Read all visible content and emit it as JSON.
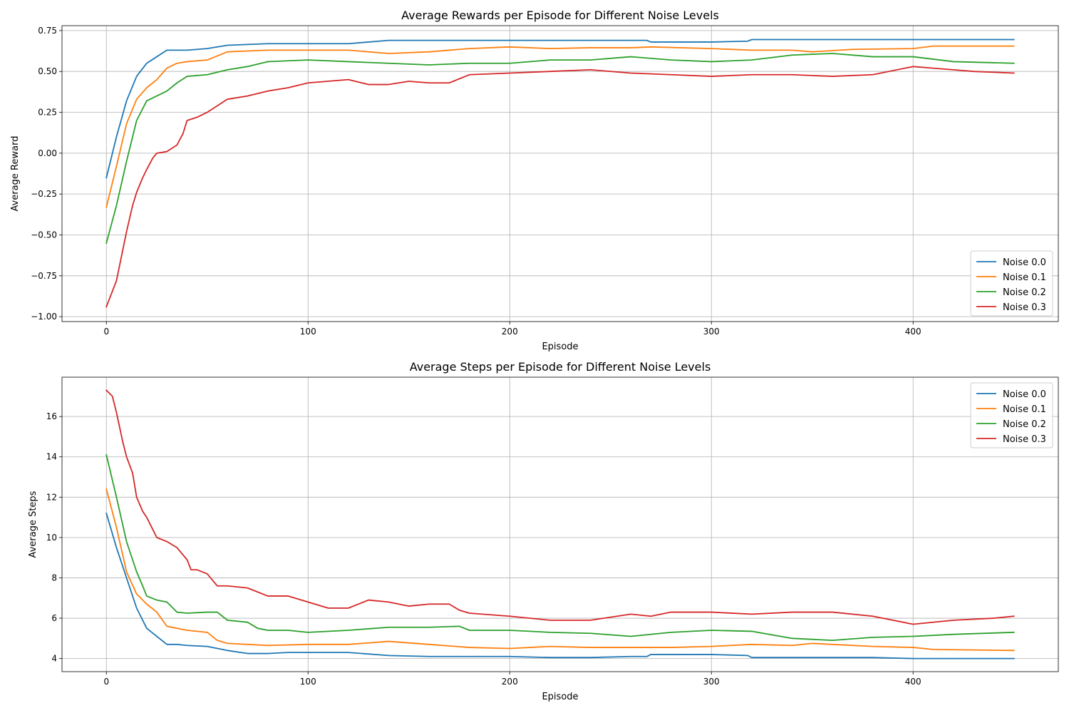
{
  "chart_data": [
    {
      "type": "line",
      "title": "Average Rewards per Episode for Different Noise Levels",
      "xlabel": "Episode",
      "ylabel": "Average Reward",
      "xlim": [
        -22,
        472
      ],
      "ylim": [
        -1.03,
        0.78
      ],
      "xticks": [
        0,
        100,
        200,
        300,
        400
      ],
      "yticks": [
        -1.0,
        -0.75,
        -0.5,
        -0.25,
        0.0,
        0.25,
        0.5,
        0.75
      ],
      "ytick_labels": [
        "−1.00",
        "−0.75",
        "−0.50",
        "−0.25",
        "0.00",
        "0.25",
        "0.50",
        "0.75"
      ],
      "grid": true,
      "legend_position": "lower-right",
      "series": [
        {
          "name": "Noise 0.0",
          "color": "#1f77b4",
          "x": [
            0,
            5,
            10,
            15,
            20,
            25,
            30,
            35,
            40,
            50,
            60,
            80,
            100,
            120,
            140,
            160,
            180,
            200,
            220,
            240,
            260,
            268,
            270,
            300,
            318,
            320,
            350,
            380,
            400,
            410,
            450
          ],
          "y": [
            -0.15,
            0.1,
            0.32,
            0.47,
            0.55,
            0.59,
            0.63,
            0.63,
            0.63,
            0.64,
            0.66,
            0.67,
            0.67,
            0.67,
            0.69,
            0.69,
            0.69,
            0.69,
            0.69,
            0.69,
            0.69,
            0.69,
            0.68,
            0.68,
            0.685,
            0.695,
            0.695,
            0.695,
            0.695,
            0.695,
            0.695
          ]
        },
        {
          "name": "Noise 0.1",
          "color": "#ff7f0e",
          "x": [
            0,
            5,
            10,
            15,
            20,
            25,
            30,
            35,
            40,
            50,
            60,
            80,
            100,
            120,
            140,
            160,
            180,
            200,
            220,
            240,
            260,
            270,
            300,
            320,
            340,
            350,
            370,
            400,
            410,
            450
          ],
          "y": [
            -0.33,
            -0.08,
            0.18,
            0.33,
            0.4,
            0.45,
            0.52,
            0.55,
            0.56,
            0.57,
            0.62,
            0.63,
            0.63,
            0.63,
            0.61,
            0.62,
            0.64,
            0.65,
            0.64,
            0.645,
            0.645,
            0.65,
            0.64,
            0.63,
            0.63,
            0.62,
            0.635,
            0.64,
            0.655,
            0.655
          ]
        },
        {
          "name": "Noise 0.2",
          "color": "#2ca02c",
          "x": [
            0,
            5,
            10,
            15,
            20,
            25,
            30,
            35,
            40,
            50,
            60,
            70,
            80,
            100,
            120,
            140,
            160,
            180,
            200,
            220,
            240,
            260,
            280,
            300,
            320,
            340,
            360,
            380,
            400,
            420,
            450
          ],
          "y": [
            -0.55,
            -0.32,
            -0.05,
            0.2,
            0.32,
            0.35,
            0.38,
            0.43,
            0.47,
            0.48,
            0.51,
            0.53,
            0.56,
            0.57,
            0.56,
            0.55,
            0.54,
            0.55,
            0.55,
            0.57,
            0.57,
            0.59,
            0.57,
            0.56,
            0.57,
            0.6,
            0.61,
            0.59,
            0.59,
            0.56,
            0.55
          ]
        },
        {
          "name": "Noise 0.3",
          "color": "#d62728",
          "x": [
            0,
            5,
            10,
            13,
            15,
            18,
            20,
            23,
            25,
            30,
            35,
            38,
            40,
            45,
            50,
            55,
            60,
            70,
            80,
            90,
            100,
            120,
            130,
            140,
            150,
            160,
            170,
            180,
            200,
            220,
            240,
            260,
            280,
            300,
            320,
            340,
            360,
            380,
            400,
            410,
            420,
            430,
            450
          ],
          "y": [
            -0.94,
            -0.78,
            -0.48,
            -0.32,
            -0.24,
            -0.15,
            -0.1,
            -0.03,
            0.0,
            0.01,
            0.05,
            0.12,
            0.2,
            0.22,
            0.25,
            0.29,
            0.33,
            0.35,
            0.38,
            0.4,
            0.43,
            0.45,
            0.42,
            0.42,
            0.44,
            0.43,
            0.43,
            0.48,
            0.49,
            0.5,
            0.51,
            0.49,
            0.48,
            0.47,
            0.48,
            0.48,
            0.47,
            0.48,
            0.53,
            0.52,
            0.51,
            0.5,
            0.49
          ]
        }
      ]
    },
    {
      "type": "line",
      "title": "Average Steps per Episode for Different Noise Levels",
      "xlabel": "Episode",
      "ylabel": "Average Steps",
      "xlim": [
        -22,
        472
      ],
      "ylim": [
        3.35,
        17.95
      ],
      "xticks": [
        0,
        100,
        200,
        300,
        400
      ],
      "yticks": [
        4,
        6,
        8,
        10,
        12,
        14,
        16
      ],
      "ytick_labels": [
        "4",
        "6",
        "8",
        "10",
        "12",
        "14",
        "16"
      ],
      "grid": true,
      "legend_position": "upper-right",
      "series": [
        {
          "name": "Noise 0.0",
          "color": "#1f77b4",
          "x": [
            0,
            5,
            10,
            15,
            20,
            25,
            30,
            35,
            40,
            50,
            60,
            70,
            80,
            90,
            100,
            120,
            140,
            160,
            180,
            200,
            220,
            240,
            260,
            268,
            270,
            300,
            318,
            320,
            350,
            380,
            400,
            450
          ],
          "y": [
            11.2,
            9.5,
            8.0,
            6.5,
            5.5,
            5.1,
            4.7,
            4.7,
            4.65,
            4.6,
            4.4,
            4.25,
            4.25,
            4.3,
            4.3,
            4.3,
            4.15,
            4.1,
            4.1,
            4.1,
            4.05,
            4.05,
            4.1,
            4.1,
            4.2,
            4.2,
            4.15,
            4.05,
            4.05,
            4.05,
            4.0,
            4.0
          ]
        },
        {
          "name": "Noise 0.1",
          "color": "#ff7f0e",
          "x": [
            0,
            5,
            10,
            15,
            20,
            25,
            30,
            35,
            40,
            50,
            55,
            60,
            70,
            80,
            100,
            120,
            140,
            160,
            180,
            200,
            220,
            240,
            260,
            280,
            300,
            320,
            340,
            350,
            360,
            380,
            400,
            410,
            450
          ],
          "y": [
            12.4,
            10.5,
            8.3,
            7.2,
            6.7,
            6.3,
            5.6,
            5.5,
            5.4,
            5.3,
            4.9,
            4.75,
            4.7,
            4.65,
            4.7,
            4.7,
            4.85,
            4.7,
            4.55,
            4.5,
            4.6,
            4.55,
            4.55,
            4.55,
            4.6,
            4.7,
            4.65,
            4.75,
            4.7,
            4.6,
            4.55,
            4.45,
            4.4
          ]
        },
        {
          "name": "Noise 0.2",
          "color": "#2ca02c",
          "x": [
            0,
            5,
            10,
            15,
            18,
            20,
            25,
            30,
            35,
            40,
            50,
            55,
            60,
            70,
            75,
            80,
            90,
            100,
            120,
            140,
            160,
            175,
            180,
            200,
            220,
            240,
            260,
            280,
            300,
            320,
            340,
            360,
            380,
            400,
            420,
            450
          ],
          "y": [
            14.1,
            12.0,
            9.8,
            8.3,
            7.6,
            7.1,
            6.9,
            6.8,
            6.3,
            6.25,
            6.3,
            6.3,
            5.9,
            5.8,
            5.5,
            5.4,
            5.4,
            5.3,
            5.4,
            5.55,
            5.55,
            5.6,
            5.4,
            5.4,
            5.3,
            5.25,
            5.1,
            5.3,
            5.4,
            5.35,
            5.0,
            4.9,
            5.05,
            5.1,
            5.2,
            5.3
          ]
        },
        {
          "name": "Noise 0.3",
          "color": "#d62728",
          "x": [
            0,
            3,
            5,
            8,
            10,
            13,
            15,
            18,
            20,
            23,
            25,
            30,
            35,
            40,
            42,
            45,
            50,
            55,
            60,
            70,
            80,
            90,
            100,
            110,
            120,
            130,
            140,
            150,
            160,
            170,
            175,
            180,
            200,
            220,
            240,
            260,
            270,
            280,
            300,
            320,
            340,
            360,
            380,
            400,
            420,
            440,
            450
          ],
          "y": [
            17.3,
            17.0,
            16.2,
            14.8,
            14.0,
            13.2,
            12.0,
            11.3,
            11.0,
            10.4,
            10.0,
            9.8,
            9.5,
            8.9,
            8.4,
            8.4,
            8.2,
            7.6,
            7.6,
            7.5,
            7.1,
            7.1,
            6.8,
            6.5,
            6.5,
            6.9,
            6.8,
            6.6,
            6.7,
            6.7,
            6.4,
            6.25,
            6.1,
            5.9,
            5.9,
            6.2,
            6.1,
            6.3,
            6.3,
            6.2,
            6.3,
            6.3,
            6.1,
            5.7,
            5.9,
            6.0,
            6.1
          ]
        }
      ]
    }
  ]
}
